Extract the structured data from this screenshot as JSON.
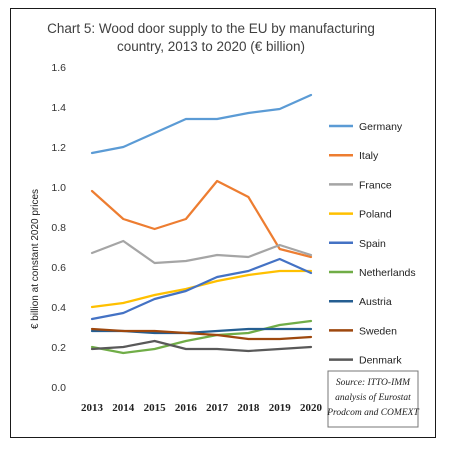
{
  "chart_data": {
    "type": "line",
    "title_lines": [
      "Chart 5: Wood door supply to the EU by manufacturing",
      "country, 2013 to 2020 (€ billion)"
    ],
    "ylabel": "€ billion at constant 2020 prices",
    "xlabel": "",
    "x": [
      "2013",
      "2014",
      "2015",
      "2016",
      "2017",
      "2018",
      "2019",
      "2020"
    ],
    "ylim": [
      0,
      1.6
    ],
    "yticks": [
      "0.0",
      "0.2",
      "0.4",
      "0.6",
      "0.8",
      "1.0",
      "1.2",
      "1.4",
      "1.6"
    ],
    "ytick_values": [
      0,
      0.2,
      0.4,
      0.6,
      0.8,
      1.0,
      1.2,
      1.4,
      1.6
    ],
    "grid": false,
    "legend_position": "right",
    "series": [
      {
        "name": "Germany",
        "color": "#5b9bd5",
        "values": [
          1.17,
          1.2,
          1.27,
          1.34,
          1.34,
          1.37,
          1.39,
          1.46
        ]
      },
      {
        "name": "Italy",
        "color": "#ed7d31",
        "values": [
          0.98,
          0.84,
          0.79,
          0.84,
          1.03,
          0.95,
          0.69,
          0.65
        ]
      },
      {
        "name": "France",
        "color": "#a5a5a5",
        "values": [
          0.67,
          0.73,
          0.62,
          0.63,
          0.66,
          0.65,
          0.71,
          0.66
        ]
      },
      {
        "name": "Poland",
        "color": "#ffc000",
        "values": [
          0.4,
          0.42,
          0.46,
          0.49,
          0.53,
          0.56,
          0.58,
          0.58
        ]
      },
      {
        "name": "Spain",
        "color": "#4472c4",
        "values": [
          0.34,
          0.37,
          0.44,
          0.48,
          0.55,
          0.58,
          0.64,
          0.57
        ]
      },
      {
        "name": "Netherlands",
        "color": "#70ad47",
        "values": [
          0.2,
          0.17,
          0.19,
          0.23,
          0.26,
          0.27,
          0.31,
          0.33
        ]
      },
      {
        "name": "Austria",
        "color": "#255e91",
        "values": [
          0.28,
          0.28,
          0.27,
          0.27,
          0.28,
          0.29,
          0.29,
          0.29
        ]
      },
      {
        "name": "Sweden",
        "color": "#9e480e",
        "values": [
          0.29,
          0.28,
          0.28,
          0.27,
          0.26,
          0.24,
          0.24,
          0.25
        ]
      },
      {
        "name": "Denmark",
        "color": "#595959",
        "values": [
          0.19,
          0.2,
          0.23,
          0.19,
          0.19,
          0.18,
          0.19,
          0.2
        ]
      }
    ],
    "source_lines": [
      "Source: ITTO-IMM",
      "analysis of Eurostat",
      "Prodcom and COMEXT"
    ]
  }
}
